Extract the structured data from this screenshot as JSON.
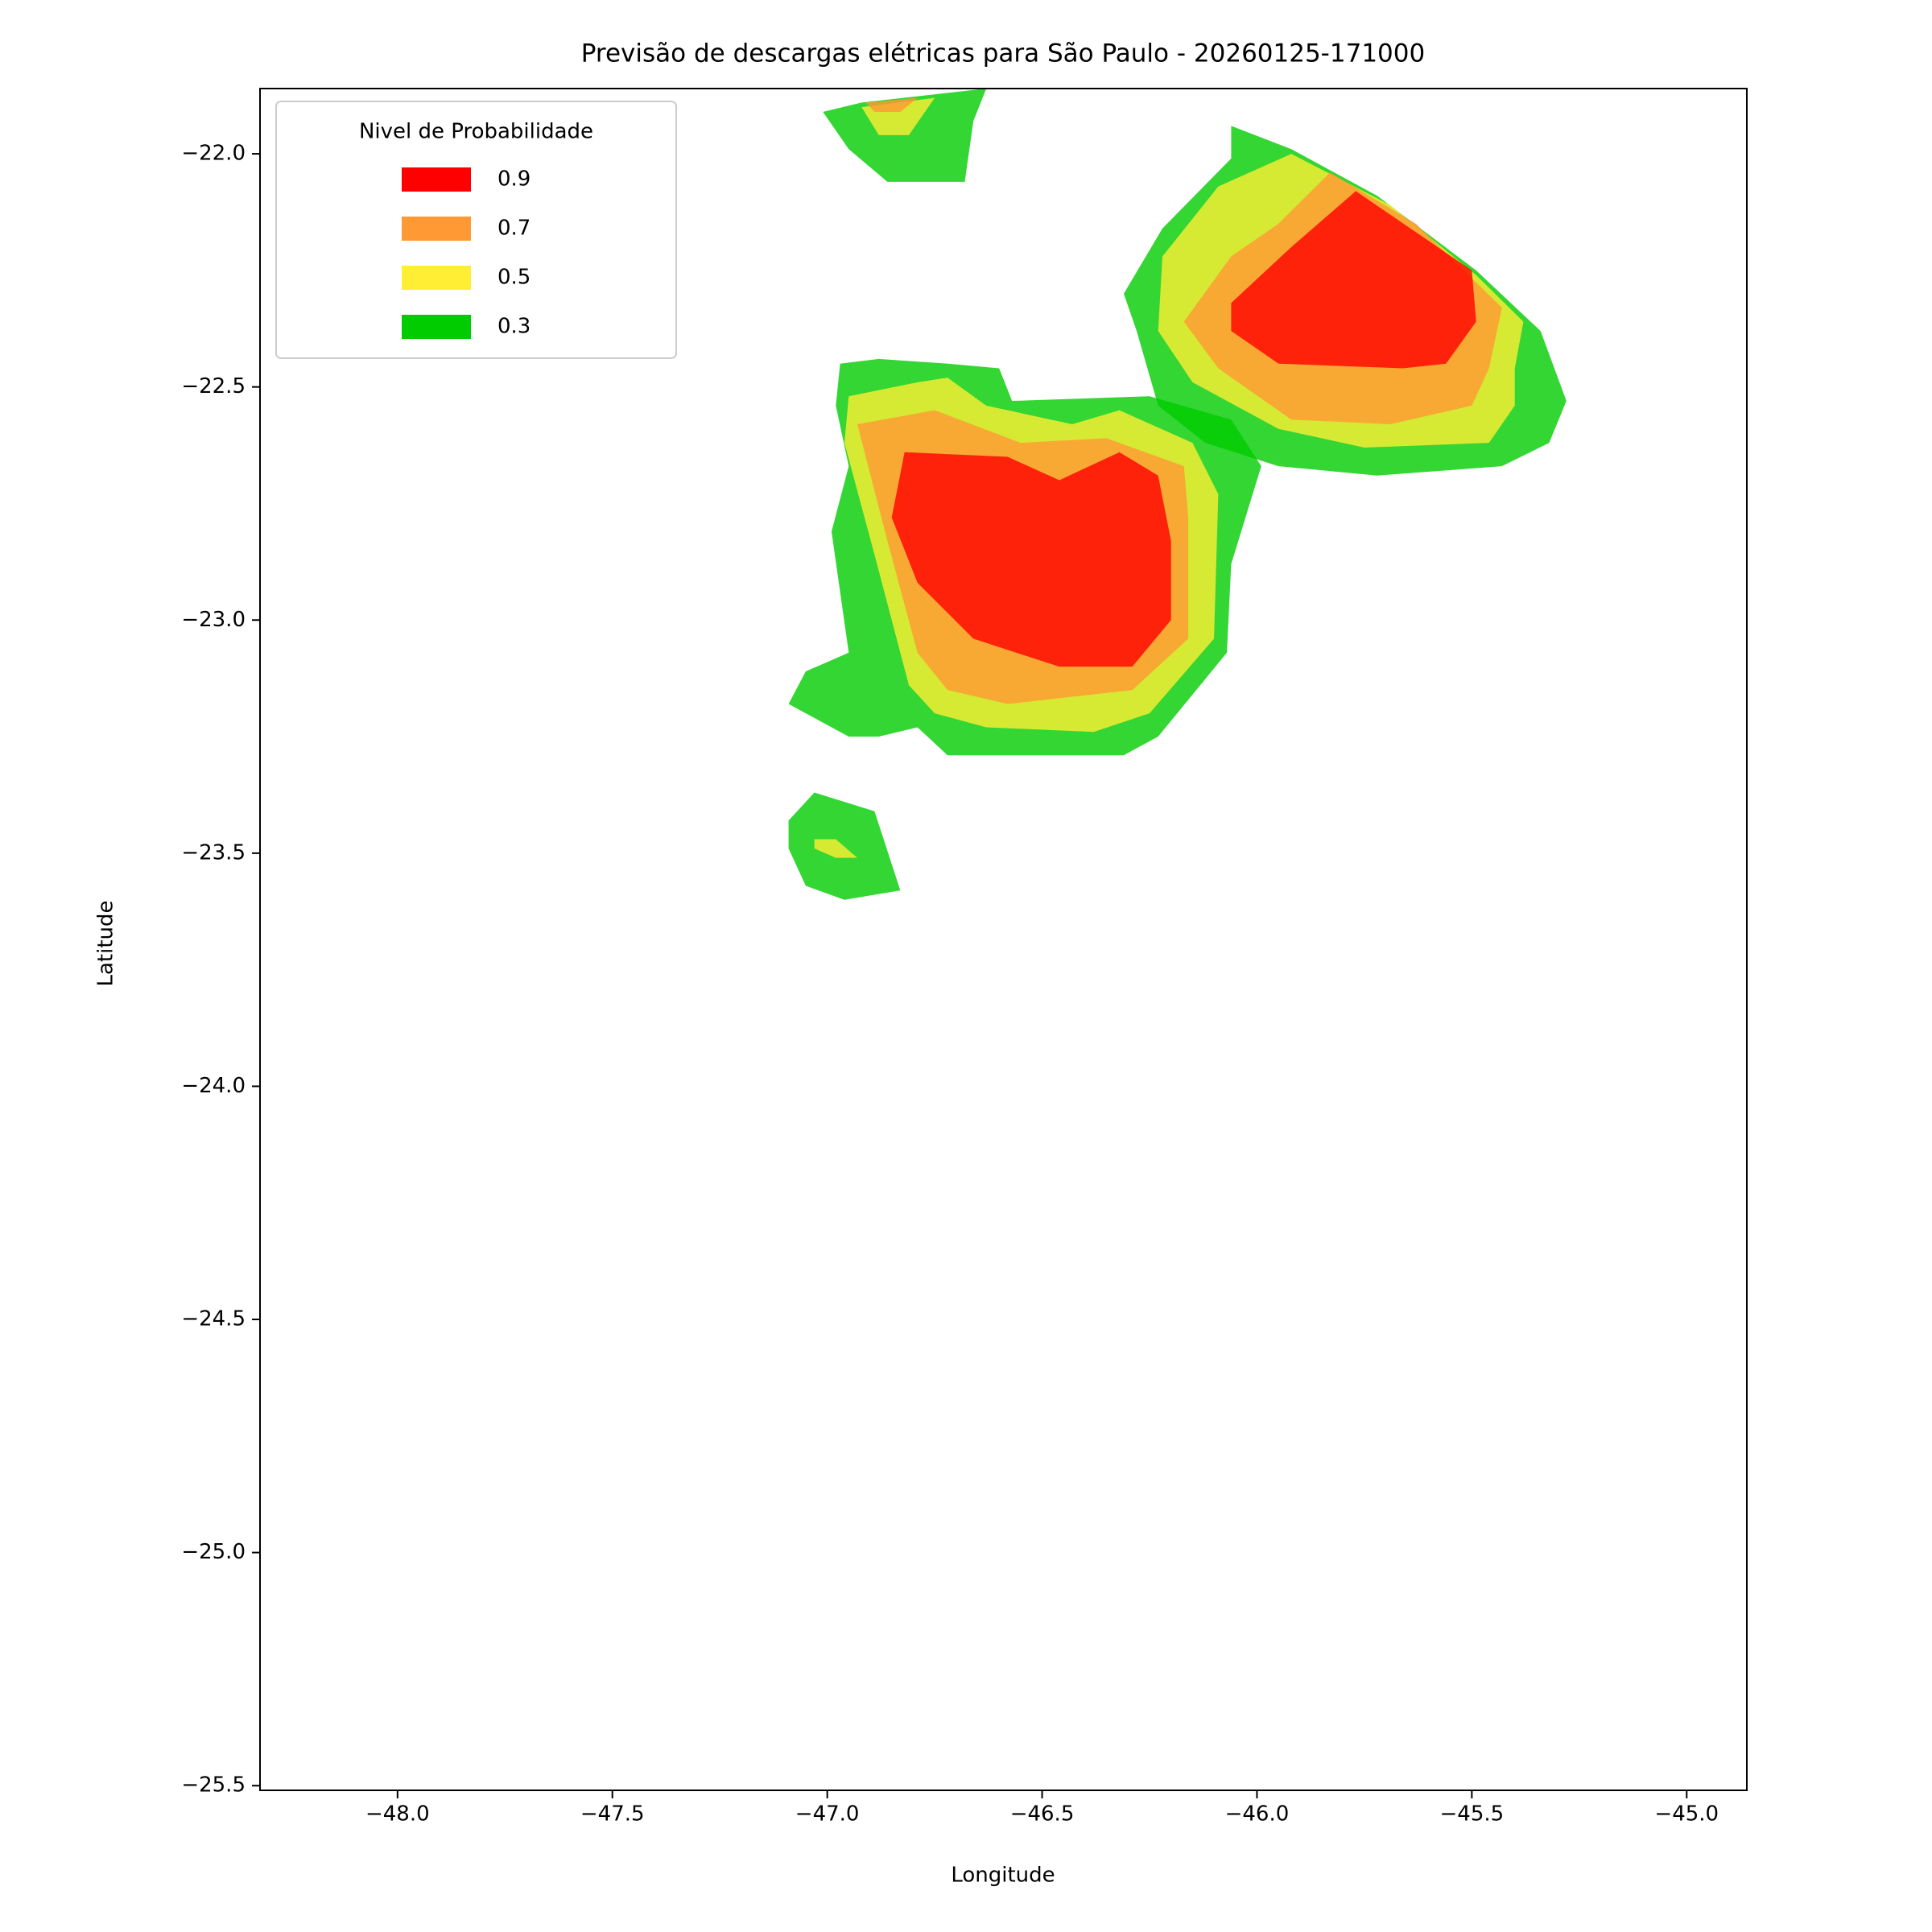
{
  "chart_data": {
    "type": "contourf",
    "title": "Previsão de descargas elétricas para São Paulo - 20260125-171000",
    "x_label": "Longitude",
    "y_label": "Latitude",
    "xlim": [
      -48.32,
      -44.86
    ],
    "ylim": [
      -25.51,
      -21.86
    ],
    "xticks": [
      {
        "value": -48.0,
        "label": "−48.0"
      },
      {
        "value": -47.5,
        "label": "−47.5"
      },
      {
        "value": -47.0,
        "label": "−47.0"
      },
      {
        "value": -46.5,
        "label": "−46.5"
      },
      {
        "value": -46.0,
        "label": "−46.0"
      },
      {
        "value": -45.5,
        "label": "−45.5"
      },
      {
        "value": -45.0,
        "label": "−45.0"
      }
    ],
    "yticks": [
      {
        "value": -22.0,
        "label": "−22.0"
      },
      {
        "value": -22.5,
        "label": "−22.5"
      },
      {
        "value": -23.0,
        "label": "−23.0"
      },
      {
        "value": -23.5,
        "label": "−23.5"
      },
      {
        "value": -24.0,
        "label": "−24.0"
      },
      {
        "value": -24.5,
        "label": "−24.5"
      },
      {
        "value": -25.0,
        "label": "−25.0"
      },
      {
        "value": -25.5,
        "label": "−25.5"
      }
    ],
    "legend_title": "Nivel de Probabilidade",
    "legend_position": "upper left",
    "series": [
      {
        "name": "0.9",
        "color": "#ff0000",
        "polygons": [
          {
            "lon": [
              -46.82,
              -46.58,
              -46.46,
              -46.32,
              -46.23,
              -46.2,
              -46.2,
              -46.29,
              -46.46,
              -46.66,
              -46.79,
              -46.85
            ],
            "lat": [
              -22.64,
              -22.65,
              -22.7,
              -22.64,
              -22.69,
              -22.83,
              -23.0,
              -23.1,
              -23.1,
              -23.04,
              -22.92,
              -22.78
            ]
          },
          {
            "lon": [
              -46.06,
              -45.92,
              -45.77,
              -45.5,
              -45.49,
              -45.56,
              -45.66,
              -45.95,
              -46.06
            ],
            "lat": [
              -22.32,
              -22.2,
              -22.08,
              -22.25,
              -22.36,
              -22.45,
              -22.46,
              -22.45,
              -22.38
            ]
          }
        ]
      },
      {
        "name": "0.7",
        "color": "#ff9933",
        "polygons": [
          {
            "lon": [
              -46.93,
              -46.75,
              -46.55,
              -46.35,
              -46.17,
              -46.16,
              -46.16,
              -46.29,
              -46.58,
              -46.72,
              -46.79,
              -46.86
            ],
            "lat": [
              -22.58,
              -22.55,
              -22.62,
              -22.61,
              -22.67,
              -22.78,
              -23.04,
              -23.15,
              -23.18,
              -23.15,
              -23.07,
              -22.83
            ]
          },
          {
            "lon": [
              -46.06,
              -45.95,
              -45.83,
              -45.63,
              -45.43,
              -45.46,
              -45.5,
              -45.69,
              -45.92,
              -46.09,
              -46.17
            ],
            "lat": [
              -22.22,
              -22.15,
              -22.04,
              -22.15,
              -22.33,
              -22.46,
              -22.54,
              -22.58,
              -22.57,
              -22.46,
              -22.36
            ]
          },
          {
            "lon": [
              -46.91,
              -46.79,
              -46.83,
              -46.89
            ],
            "lat": [
              -21.89,
              -21.88,
              -21.91,
              -21.91
            ]
          }
        ]
      },
      {
        "name": "0.5",
        "color": "#ffee33",
        "polygons": [
          {
            "lon": [
              -46.95,
              -46.79,
              -46.72,
              -46.63,
              -46.43,
              -46.32,
              -46.15,
              -46.09,
              -46.1,
              -46.25,
              -46.38,
              -46.63,
              -46.75,
              -46.81,
              -46.89,
              -46.96
            ],
            "lat": [
              -22.52,
              -22.49,
              -22.48,
              -22.54,
              -22.58,
              -22.55,
              -22.62,
              -22.73,
              -23.04,
              -23.2,
              -23.24,
              -23.23,
              -23.2,
              -23.14,
              -22.86,
              -22.62
            ]
          },
          {
            "lon": [
              -46.09,
              -45.92,
              -45.69,
              -45.49,
              -45.38,
              -45.4,
              -45.4,
              -45.46,
              -45.75,
              -45.95,
              -46.15,
              -46.23,
              -46.22
            ],
            "lat": [
              -22.07,
              -22.0,
              -22.11,
              -22.26,
              -22.36,
              -22.46,
              -22.54,
              -22.62,
              -22.63,
              -22.59,
              -22.49,
              -22.38,
              -22.22
            ]
          },
          {
            "lon": [
              -46.92,
              -46.75,
              -46.81,
              -46.88
            ],
            "lat": [
              -21.9,
              -21.88,
              -21.96,
              -21.96
            ]
          },
          {
            "lon": [
              -47.03,
              -46.98,
              -46.93,
              -46.98,
              -47.03
            ],
            "lat": [
              -23.47,
              -23.47,
              -23.51,
              -23.51,
              -23.49
            ]
          }
        ]
      },
      {
        "name": "0.3",
        "color": "#00cc00",
        "polygons": [
          {
            "lon": [
              -46.97,
              -46.88,
              -46.72,
              -46.6,
              -46.57,
              -46.25,
              -46.06,
              -45.99,
              -46.06,
              -46.07,
              -46.23,
              -46.31,
              -46.63,
              -46.72,
              -46.79,
              -46.88,
              -46.95,
              -47.09,
              -47.05,
              -46.95,
              -46.99,
              -46.95,
              -46.98
            ],
            "lat": [
              -22.45,
              -22.44,
              -22.45,
              -22.46,
              -22.53,
              -22.52,
              -22.57,
              -22.67,
              -22.88,
              -23.07,
              -23.25,
              -23.29,
              -23.29,
              -23.29,
              -23.23,
              -23.25,
              -23.25,
              -23.18,
              -23.11,
              -23.07,
              -22.81,
              -22.67,
              -22.54
            ]
          },
          {
            "lon": [
              -46.06,
              -45.92,
              -45.72,
              -45.49,
              -45.34,
              -45.28,
              -45.32,
              -45.43,
              -45.72,
              -45.95,
              -46.12,
              -46.23,
              -46.28,
              -46.31,
              -46.22,
              -46.06
            ],
            "lat": [
              -21.94,
              -21.99,
              -22.09,
              -22.25,
              -22.38,
              -22.53,
              -22.62,
              -22.67,
              -22.69,
              -22.67,
              -22.62,
              -22.54,
              -22.38,
              -22.3,
              -22.16,
              -22.01
            ]
          },
          {
            "lon": [
              -47.01,
              -46.92,
              -46.63,
              -46.66,
              -46.68,
              -46.86,
              -46.95
            ],
            "lat": [
              -21.91,
              -21.89,
              -21.86,
              -21.93,
              -22.06,
              -22.06,
              -21.99
            ]
          },
          {
            "lon": [
              -47.09,
              -47.03,
              -46.89,
              -46.83,
              -46.96,
              -47.05,
              -47.09
            ],
            "lat": [
              -23.43,
              -23.37,
              -23.41,
              -23.58,
              -23.6,
              -23.57,
              -23.49
            ]
          }
        ]
      }
    ]
  }
}
